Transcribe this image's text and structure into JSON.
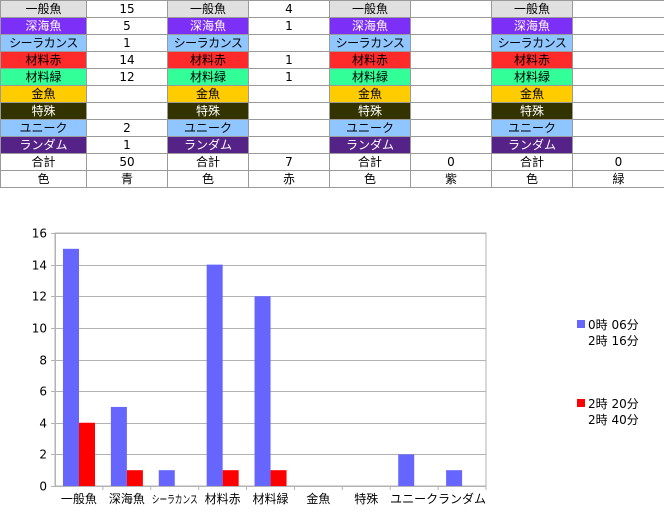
{
  "table": {
    "groups": [
      {
        "values": [
          "15",
          "5",
          "1",
          "14",
          "12",
          "",
          "",
          "2",
          "1"
        ],
        "total": "50",
        "color_value": "青"
      },
      {
        "values": [
          "4",
          "1",
          "",
          "1",
          "1",
          "",
          "",
          "",
          ""
        ],
        "total": "7",
        "color_value": "赤"
      },
      {
        "values": [
          "",
          "",
          "",
          "",
          "",
          "",
          "",
          "",
          ""
        ],
        "total": "0",
        "color_value": "紫"
      },
      {
        "values": [
          "",
          "",
          "",
          "",
          "",
          "",
          "",
          "",
          ""
        ],
        "total": "0",
        "color_value": "緑"
      }
    ],
    "rows": [
      {
        "label": "一般魚",
        "bg": "#e0e0e0",
        "fg": "#000000"
      },
      {
        "label": "深海魚",
        "bg": "#7b2ff7",
        "fg": "#ffffff"
      },
      {
        "label": "シーラカンス",
        "bg": "#8fc6ff",
        "fg": "#000000"
      },
      {
        "label": "材料赤",
        "bg": "#ff2a2a",
        "fg": "#000000"
      },
      {
        "label": "材料緑",
        "bg": "#33ff99",
        "fg": "#000000"
      },
      {
        "label": "金魚",
        "bg": "#ffcc00",
        "fg": "#000000"
      },
      {
        "label": "特殊",
        "bg": "#333300",
        "fg": "#ffffff"
      },
      {
        "label": "ユニーク",
        "bg": "#8fc6ff",
        "fg": "#000000"
      },
      {
        "label": "ランダム",
        "bg": "#552288",
        "fg": "#ffffff"
      }
    ],
    "total_label": "合計",
    "color_label": "色"
  },
  "chart_data": {
    "type": "bar",
    "categories": [
      "一般魚",
      "深海魚",
      "シーラカンス",
      "材料赤",
      "材料緑",
      "金魚",
      "特殊",
      "ユニーク",
      "ランダム"
    ],
    "series": [
      {
        "name": "0時 06分 2時 16分",
        "name_line1": "0時 06分",
        "name_line2": "2時 16分",
        "color": "#6666ff",
        "values": [
          15,
          5,
          1,
          14,
          12,
          0,
          0,
          2,
          1
        ]
      },
      {
        "name": "2時 20分 2時 40分",
        "name_line1": "2時 20分",
        "name_line2": "2時 40分",
        "color": "#ff0000",
        "values": [
          4,
          1,
          0,
          1,
          1,
          0,
          0,
          0,
          0
        ]
      }
    ],
    "ylim": [
      0,
      16
    ],
    "yticks": [
      0,
      2,
      4,
      6,
      8,
      10,
      12,
      14,
      16
    ],
    "grid": true,
    "legend": "right"
  }
}
